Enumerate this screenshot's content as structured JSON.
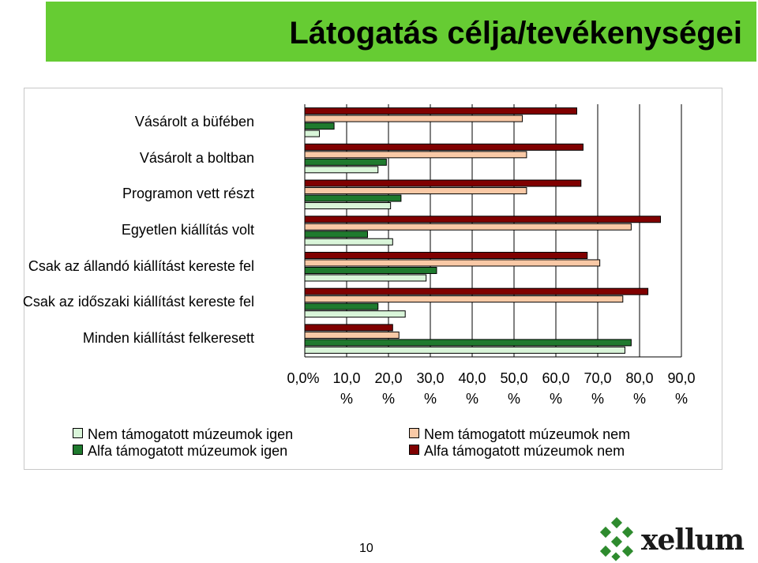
{
  "slide": {
    "title": "Látogatás célja/tevékenységei",
    "page_number": "10",
    "logo_text": "xellum"
  },
  "colors": {
    "banner": "#66cc33",
    "series": [
      "#d9f5d9",
      "#1f7a2e",
      "#f9c9a6",
      "#800000"
    ]
  },
  "chart_data": {
    "type": "bar",
    "orientation": "horizontal",
    "categories": [
      "Vásárolt a büfében",
      "Vásárolt a boltban",
      "Programon vett részt",
      "Egyetlen kiállítás volt",
      "Csak az állandó kiállítást kereste fel",
      "Csak az időszaki kiállítást kereste fel",
      "Minden kiállítást felkeresett"
    ],
    "series": [
      {
        "name": "Nem támogatott múzeumok igen",
        "color": "#d9f5d9",
        "values": [
          3.5,
          17.5,
          20.5,
          21.0,
          29.0,
          24.0,
          76.5
        ]
      },
      {
        "name": "Alfa támogatott múzeumok igen",
        "color": "#1f7a2e",
        "values": [
          7.0,
          19.5,
          23.0,
          15.0,
          31.5,
          17.5,
          78.0
        ]
      },
      {
        "name": "Nem támogatott múzeumok nem",
        "color": "#f9c9a6",
        "values": [
          52.0,
          53.0,
          53.0,
          78.0,
          70.5,
          76.0,
          22.5
        ]
      },
      {
        "name": "Alfa támogatott múzeumok nem",
        "color": "#800000",
        "values": [
          65.0,
          66.5,
          66.0,
          85.0,
          67.5,
          82.0,
          21.0
        ]
      }
    ],
    "xlim": [
      0,
      90
    ],
    "x_ticks": [
      {
        "value": "0,0%",
        "unit": ""
      },
      {
        "value": "10,0",
        "unit": "%"
      },
      {
        "value": "20,0",
        "unit": "%"
      },
      {
        "value": "30,0",
        "unit": "%"
      },
      {
        "value": "40,0",
        "unit": "%"
      },
      {
        "value": "50,0",
        "unit": "%"
      },
      {
        "value": "60,0",
        "unit": "%"
      },
      {
        "value": "70,0",
        "unit": "%"
      },
      {
        "value": "80,0",
        "unit": "%"
      },
      {
        "value": "90,0",
        "unit": "%"
      }
    ],
    "gridlines": true,
    "legend_position": "bottom"
  }
}
